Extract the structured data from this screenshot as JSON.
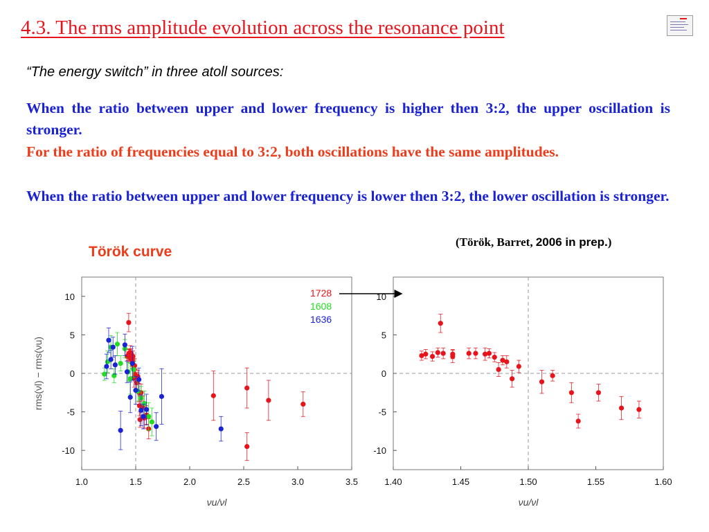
{
  "slide": {
    "title": "4.3. The rms amplitude evolution across the resonance point",
    "subtitle": "“The energy switch” in three atoll sources:",
    "para1": "When the ratio between upper and lower frequency is higher then 3:2, the upper oscillation is stronger.",
    "para2": "For the ratio of frequencies equal to 3:2, both oscillations have the same amplitudes.",
    "para3": "When the ratio between upper and lower frequency is lower then 3:2, the lower oscillation is stronger.",
    "citation_authors": "(Török, Barret,",
    "citation_year": "2006 in prep.",
    "citation_close": ")",
    "curve_label": "Török curve"
  },
  "colors": {
    "title": "#e8141c",
    "blue_text": "#1a22d6",
    "orange_text": "#ee3b1a",
    "s1728": "#e8141c",
    "s1608": "#22dd22",
    "s1636": "#1a22d6"
  },
  "chart_data": [
    {
      "type": "scatter",
      "title": "",
      "xlabel": "νu/νl",
      "ylabel": "rms(νl) − rms(νu)",
      "xlim": [
        1.0,
        3.5
      ],
      "ylim": [
        -12.5,
        12.5
      ],
      "xticks": [
        "1.0",
        "1.5",
        "2.0",
        "2.5",
        "3.0",
        "3.5"
      ],
      "yticks": [
        "10",
        "5",
        "0",
        "-5",
        "-10"
      ],
      "reference_lines": {
        "x": 1.5,
        "y": 0
      },
      "legend": "top-right",
      "series": [
        {
          "name": "1728",
          "color": "#e8141c",
          "points": [
            [
              1.42,
              2.2,
              0.6
            ],
            [
              1.43,
              2.4,
              0.7
            ],
            [
              1.435,
              6.6,
              1.2
            ],
            [
              1.44,
              2.6,
              0.6
            ],
            [
              1.445,
              2.3,
              0.8
            ],
            [
              1.45,
              2.7,
              0.9
            ],
            [
              1.455,
              1.9,
              0.6
            ],
            [
              1.46,
              2.5,
              0.7
            ],
            [
              1.465,
              1.7,
              0.8
            ],
            [
              1.47,
              1.2,
              0.6
            ],
            [
              1.475,
              2.2,
              0.7
            ],
            [
              1.48,
              0.6,
              1.0
            ],
            [
              1.485,
              -0.6,
              1.2
            ],
            [
              1.49,
              1.0,
              0.9
            ],
            [
              1.495,
              -0.2,
              0.8
            ],
            [
              1.5,
              -0.5,
              1.0
            ],
            [
              1.51,
              -1.2,
              1.3
            ],
            [
              1.52,
              -0.4,
              0.8
            ],
            [
              1.53,
              -2.5,
              1.2
            ],
            [
              1.535,
              -4.2,
              1.3
            ],
            [
              1.54,
              -6.0,
              1.0
            ],
            [
              1.55,
              -2.5,
              1.1
            ],
            [
              1.57,
              -4.4,
              1.5
            ],
            [
              1.58,
              -5.8,
              1.3
            ],
            [
              1.6,
              -5.4,
              1.2
            ],
            [
              1.62,
              -7.2,
              1.3
            ],
            [
              2.22,
              -2.9,
              3.2
            ],
            [
              2.53,
              -1.9,
              2.6
            ],
            [
              2.53,
              -9.5,
              1.8
            ],
            [
              2.73,
              -3.5,
              2.6
            ],
            [
              3.05,
              -4.0,
              1.6
            ]
          ]
        },
        {
          "name": "1608",
          "color": "#22dd22",
          "points": [
            [
              1.21,
              -0.1,
              0.8
            ],
            [
              1.24,
              1.5,
              1.4
            ],
            [
              1.27,
              3.4,
              1.5
            ],
            [
              1.3,
              -0.3,
              0.9
            ],
            [
              1.33,
              3.8,
              1.5
            ],
            [
              1.36,
              1.3,
              1.0
            ],
            [
              1.4,
              3.2,
              1.2
            ],
            [
              1.43,
              0.2,
              1.2
            ],
            [
              1.45,
              -0.7,
              2.0
            ],
            [
              1.48,
              0.5,
              1.0
            ],
            [
              1.52,
              -2.3,
              1.3
            ],
            [
              1.55,
              -3.2,
              1.5
            ],
            [
              1.58,
              -3.9,
              1.6
            ],
            [
              1.62,
              -5.6,
              1.8
            ],
            [
              1.65,
              -6.3,
              1.8
            ]
          ]
        },
        {
          "name": "1636",
          "color": "#1a22d6",
          "points": [
            [
              1.23,
              0.9,
              1.6
            ],
            [
              1.25,
              4.3,
              1.6
            ],
            [
              1.27,
              1.8,
              1.2
            ],
            [
              1.29,
              3.4,
              1.3
            ],
            [
              1.31,
              1.1,
              1.2
            ],
            [
              1.36,
              -7.4,
              2.5
            ],
            [
              1.4,
              3.7,
              1.4
            ],
            [
              1.42,
              0.2,
              1.4
            ],
            [
              1.45,
              -3.1,
              2.0
            ],
            [
              1.47,
              1.3,
              2.2
            ],
            [
              1.5,
              -2.2,
              1.8
            ],
            [
              1.53,
              -0.8,
              1.5
            ],
            [
              1.55,
              -4.8,
              2.0
            ],
            [
              1.57,
              -5.6,
              1.6
            ],
            [
              1.6,
              -4.7,
              2.0
            ],
            [
              1.69,
              -6.9,
              1.8
            ],
            [
              1.74,
              -3.0,
              3.6
            ],
            [
              2.29,
              -7.2,
              1.6
            ]
          ]
        }
      ]
    },
    {
      "type": "scatter",
      "title": "",
      "xlabel": "νu/νl",
      "ylabel": "",
      "xlim": [
        1.4,
        1.6
      ],
      "ylim": [
        -12.5,
        12.5
      ],
      "xticks": [
        "1.40",
        "1.45",
        "1.50",
        "1.55",
        "1.60"
      ],
      "yticks": [
        "10",
        "5",
        "0",
        "-5",
        "-10"
      ],
      "reference_lines": {
        "x": 1.5,
        "y": 0
      },
      "series": [
        {
          "name": "",
          "color": "#e8141c",
          "points": [
            [
              1.421,
              2.3,
              0.6
            ],
            [
              1.424,
              2.5,
              0.6
            ],
            [
              1.429,
              2.2,
              0.6
            ],
            [
              1.433,
              2.7,
              0.6
            ],
            [
              1.435,
              6.5,
              1.2
            ],
            [
              1.437,
              2.6,
              0.7
            ],
            [
              1.444,
              2.2,
              0.8
            ],
            [
              1.444,
              2.5,
              0.6
            ],
            [
              1.456,
              2.6,
              0.7
            ],
            [
              1.461,
              2.6,
              0.7
            ],
            [
              1.468,
              2.5,
              0.8
            ],
            [
              1.471,
              2.6,
              0.6
            ],
            [
              1.475,
              2.1,
              0.6
            ],
            [
              1.478,
              0.5,
              0.9
            ],
            [
              1.481,
              1.7,
              0.6
            ],
            [
              1.484,
              1.5,
              0.8
            ],
            [
              1.488,
              -0.7,
              1.1
            ],
            [
              1.493,
              0.9,
              0.8
            ],
            [
              1.51,
              -1.1,
              1.5
            ],
            [
              1.518,
              -0.3,
              0.7
            ],
            [
              1.532,
              -2.5,
              1.3
            ],
            [
              1.537,
              -6.2,
              0.9
            ],
            [
              1.552,
              -2.5,
              1.1
            ],
            [
              1.569,
              -4.5,
              1.5
            ],
            [
              1.582,
              -4.7,
              1.1
            ]
          ]
        }
      ]
    }
  ]
}
